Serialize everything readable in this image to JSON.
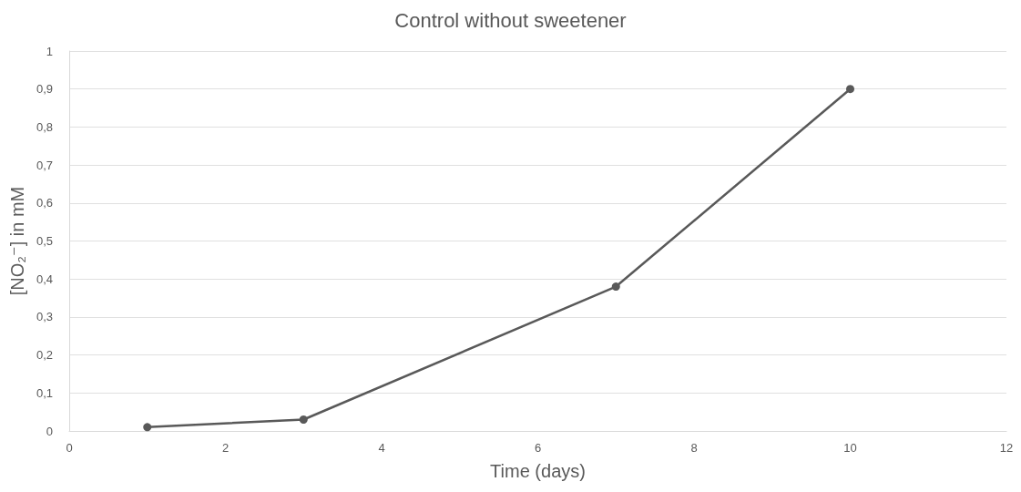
{
  "chart_data": {
    "type": "line",
    "title": "Control without sweetener",
    "xlabel": "Time (days)",
    "ylabel": "[NO₂⁻] in mM",
    "x": [
      1,
      3,
      7,
      10
    ],
    "series": [
      {
        "color": "#595959",
        "values": [
          0.01,
          0.03,
          0.38,
          0.9
        ]
      }
    ],
    "xlim": [
      0,
      12
    ],
    "xticks": [
      0,
      2,
      4,
      6,
      8,
      10,
      12
    ],
    "ylim": [
      0,
      1
    ],
    "yticks": [
      0,
      {
        "value": 0.1,
        "label": "0,1"
      },
      {
        "value": 0.2,
        "label": "0,2"
      },
      {
        "value": 0.3,
        "label": "0,3"
      },
      {
        "value": 0.4,
        "label": "0,4"
      },
      {
        "value": 0.5,
        "label": "0,5"
      },
      {
        "value": 0.6,
        "label": "0,6"
      },
      {
        "value": 0.7,
        "label": "0,7"
      },
      {
        "value": 0.8,
        "label": "0,8"
      },
      {
        "value": 0.9,
        "label": "0,9"
      },
      1
    ],
    "grid": "y",
    "marker": "circle",
    "line_style": "solid"
  }
}
